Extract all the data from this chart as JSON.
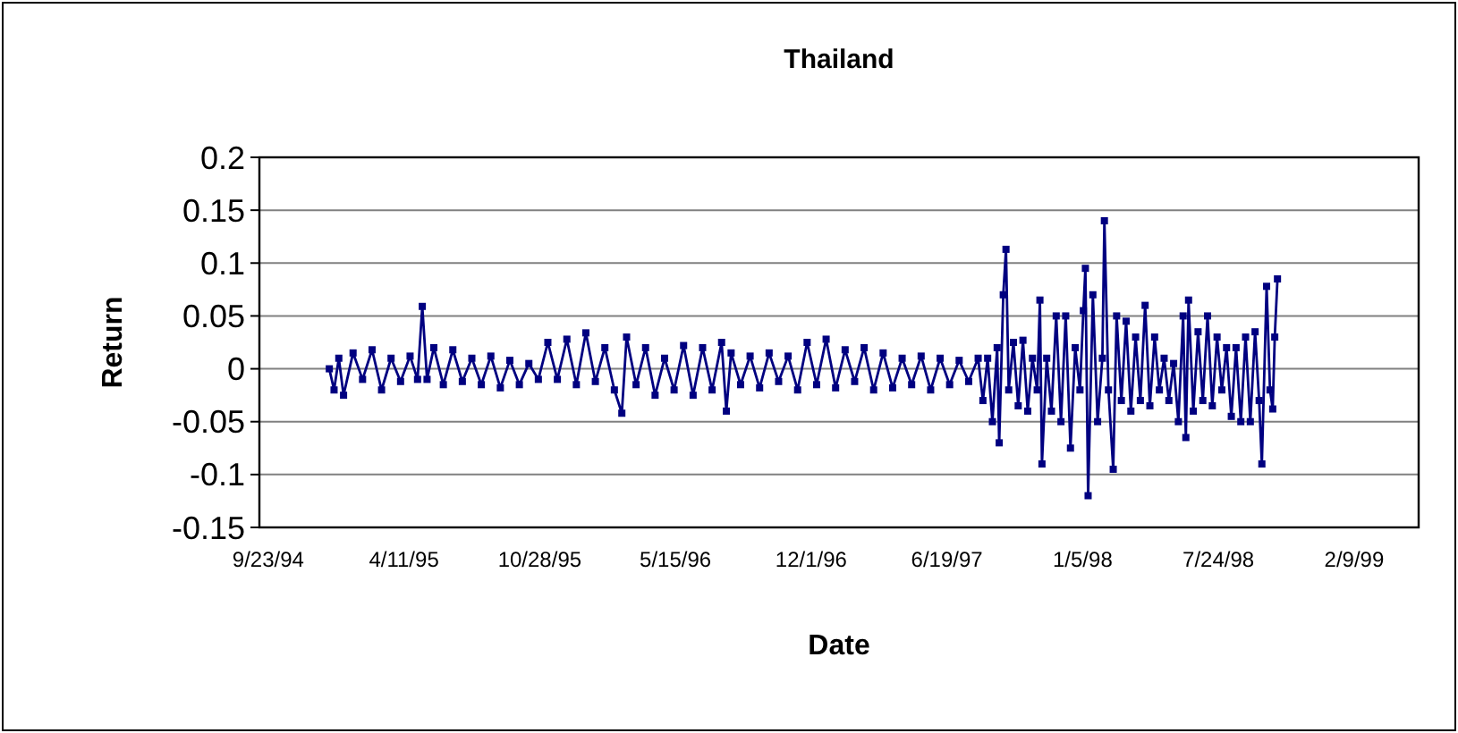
{
  "chart_data": {
    "type": "line",
    "title": "Thailand",
    "xlabel": "Date",
    "ylabel": "Return",
    "xlim": [
      "1994-09-10",
      "1999-05-15"
    ],
    "xticks": [
      {
        "value": "1994-09-23",
        "label": "9/23/94"
      },
      {
        "value": "1995-04-11",
        "label": "4/11/95"
      },
      {
        "value": "1995-10-28",
        "label": "10/28/95"
      },
      {
        "value": "1996-05-15",
        "label": "5/15/96"
      },
      {
        "value": "1996-12-01",
        "label": "12/1/96"
      },
      {
        "value": "1997-06-19",
        "label": "6/19/97"
      },
      {
        "value": "1998-01-05",
        "label": "1/5/98"
      },
      {
        "value": "1998-07-24",
        "label": "7/24/98"
      },
      {
        "value": "1999-02-09",
        "label": "2/9/99"
      }
    ],
    "ylim": [
      -0.15,
      0.2
    ],
    "yticks": [
      -0.15,
      -0.1,
      -0.05,
      0,
      0.05,
      0.1,
      0.15,
      0.2
    ],
    "grid": "y",
    "marker": "square",
    "line_style": "solid",
    "x": [
      "1994-12-22",
      "1994-12-29",
      "1995-01-05",
      "1995-01-12",
      "1995-01-26",
      "1995-02-09",
      "1995-02-23",
      "1995-03-09",
      "1995-03-23",
      "1995-04-06",
      "1995-04-20",
      "1995-05-01",
      "1995-05-08",
      "1995-05-15",
      "1995-05-25",
      "1995-06-08",
      "1995-06-22",
      "1995-07-06",
      "1995-07-20",
      "1995-08-03",
      "1995-08-17",
      "1995-08-31",
      "1995-09-14",
      "1995-09-28",
      "1995-10-12",
      "1995-10-26",
      "1995-11-09",
      "1995-11-23",
      "1995-12-07",
      "1995-12-21",
      "1996-01-04",
      "1996-01-18",
      "1996-02-01",
      "1996-02-15",
      "1996-02-26",
      "1996-03-04",
      "1996-03-18",
      "1996-04-01",
      "1996-04-15",
      "1996-04-29",
      "1996-05-13",
      "1996-05-27",
      "1996-06-10",
      "1996-06-24",
      "1996-07-08",
      "1996-07-22",
      "1996-07-29",
      "1996-08-05",
      "1996-08-19",
      "1996-09-02",
      "1996-09-16",
      "1996-09-30",
      "1996-10-14",
      "1996-10-28",
      "1996-11-11",
      "1996-11-25",
      "1996-12-09",
      "1996-12-23",
      "1997-01-06",
      "1997-01-20",
      "1997-02-03",
      "1997-02-17",
      "1997-03-03",
      "1997-03-17",
      "1997-03-31",
      "1997-04-14",
      "1997-04-28",
      "1997-05-12",
      "1997-05-26",
      "1997-06-09",
      "1997-06-23",
      "1997-07-07",
      "1997-07-21",
      "1997-08-04",
      "1997-08-11",
      "1997-08-18",
      "1997-08-25",
      "1997-09-01",
      "1997-09-04",
      "1997-09-10",
      "1997-09-14",
      "1997-09-18",
      "1997-09-25",
      "1997-10-02",
      "1997-10-09",
      "1997-10-16",
      "1997-10-23",
      "1997-10-30",
      "1997-11-03",
      "1997-11-06",
      "1997-11-13",
      "1997-11-20",
      "1997-11-27",
      "1997-12-04",
      "1997-12-11",
      "1997-12-18",
      "1997-12-25",
      "1998-01-01",
      "1998-01-06",
      "1998-01-09",
      "1998-01-13",
      "1998-01-20",
      "1998-01-27",
      "1998-02-03",
      "1998-02-06",
      "1998-02-12",
      "1998-02-19",
      "1998-02-24",
      "1998-03-03",
      "1998-03-10",
      "1998-03-17",
      "1998-03-24",
      "1998-03-31",
      "1998-04-07",
      "1998-04-14",
      "1998-04-21",
      "1998-04-28",
      "1998-05-05",
      "1998-05-12",
      "1998-05-19",
      "1998-05-26",
      "1998-06-02",
      "1998-06-06",
      "1998-06-10",
      "1998-06-17",
      "1998-06-24",
      "1998-07-01",
      "1998-07-08",
      "1998-07-15",
      "1998-07-22",
      "1998-07-29",
      "1998-08-05",
      "1998-08-12",
      "1998-08-19",
      "1998-08-26",
      "1998-09-02",
      "1998-09-09",
      "1998-09-16",
      "1998-09-22",
      "1998-09-26",
      "1998-10-03",
      "1998-10-08",
      "1998-10-12",
      "1998-10-15",
      "1998-10-19"
    ],
    "series": [
      {
        "color": "#000080",
        "values": [
          0.0,
          -0.02,
          0.01,
          -0.025,
          0.015,
          -0.01,
          0.018,
          -0.02,
          0.01,
          -0.012,
          0.012,
          -0.01,
          0.059,
          -0.01,
          0.02,
          -0.015,
          0.018,
          -0.012,
          0.01,
          -0.015,
          0.012,
          -0.018,
          0.008,
          -0.015,
          0.005,
          -0.01,
          0.025,
          -0.01,
          0.028,
          -0.015,
          0.034,
          -0.012,
          0.02,
          -0.02,
          -0.042,
          0.03,
          -0.015,
          0.02,
          -0.025,
          0.01,
          -0.02,
          0.022,
          -0.025,
          0.02,
          -0.02,
          0.025,
          -0.04,
          0.015,
          -0.015,
          0.012,
          -0.018,
          0.015,
          -0.012,
          0.012,
          -0.02,
          0.025,
          -0.015,
          0.028,
          -0.018,
          0.018,
          -0.012,
          0.02,
          -0.02,
          0.015,
          -0.018,
          0.01,
          -0.015,
          0.012,
          -0.02,
          0.01,
          -0.015,
          0.008,
          -0.012,
          0.01,
          -0.03,
          0.01,
          -0.05,
          0.02,
          -0.07,
          0.07,
          0.113,
          -0.02,
          0.025,
          -0.035,
          0.027,
          -0.04,
          0.01,
          -0.02,
          0.065,
          -0.09,
          0.01,
          -0.04,
          0.05,
          -0.05,
          0.05,
          -0.075,
          0.02,
          -0.02,
          0.055,
          0.095,
          -0.12,
          0.07,
          -0.05,
          0.01,
          0.14,
          -0.02,
          -0.095,
          0.05,
          -0.03,
          0.045,
          -0.04,
          0.03,
          -0.03,
          0.06,
          -0.035,
          0.03,
          -0.02,
          0.01,
          -0.03,
          0.005,
          -0.05,
          0.05,
          -0.065,
          0.065,
          -0.04,
          0.035,
          -0.03,
          0.05,
          -0.035,
          0.03,
          -0.02,
          0.02,
          -0.045,
          0.02,
          -0.05,
          0.03,
          -0.05,
          0.035,
          -0.03,
          -0.09,
          0.078,
          -0.02,
          -0.038,
          0.03,
          0.085
        ]
      }
    ]
  }
}
